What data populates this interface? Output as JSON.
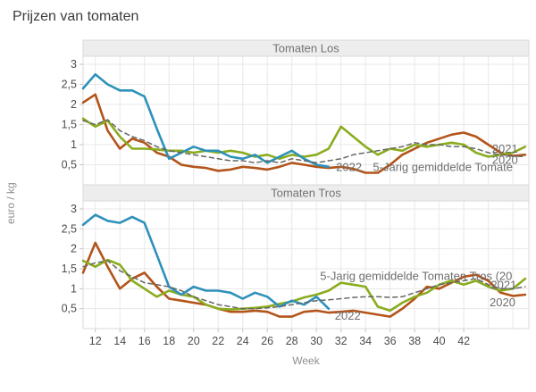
{
  "page": {
    "title": "Prijzen van tomaten",
    "background": "#ffffff"
  },
  "axes": {
    "xlabel": "Week",
    "ylabel": "euro / kg",
    "x_ticks": [
      12,
      14,
      16,
      18,
      20,
      22,
      24,
      26,
      28,
      30,
      32,
      34,
      36,
      38,
      40,
      42
    ],
    "y_ticks": [
      {
        "value": 0.5,
        "label": "0,5"
      },
      {
        "value": 1,
        "label": "1"
      },
      {
        "value": 1.5,
        "label": "1,5"
      },
      {
        "value": 2,
        "label": "2"
      },
      {
        "value": 2.5,
        "label": "2,5"
      },
      {
        "value": 3,
        "label": "3"
      }
    ],
    "ylim": [
      0,
      3.2
    ],
    "xlim": [
      11,
      47.3
    ],
    "grid": true
  },
  "colors": {
    "series_2022": "#2e91ba",
    "series_2021": "#8aac1e",
    "series_2020": "#b3541a",
    "series_avg": "#666666",
    "panel_strip": "#ededed",
    "grid_line": "#e8e8e8",
    "border": "#d9d9d9"
  },
  "chart_data": [
    {
      "type": "line",
      "panel_title": "Tomaten Los",
      "weeks": [
        11,
        12,
        13,
        14,
        15,
        16,
        17,
        18,
        19,
        20,
        21,
        22,
        23,
        24,
        25,
        26,
        27,
        28,
        29,
        30,
        31,
        32,
        33,
        34,
        35,
        36,
        37,
        38,
        39,
        40,
        41,
        42,
        43,
        44,
        45,
        46,
        47
      ],
      "series": [
        {
          "id": "2020",
          "name": "2020",
          "color": "#b3541a",
          "dash": false,
          "start_week": 11,
          "values": [
            2.05,
            2.25,
            1.35,
            0.9,
            1.15,
            1.05,
            0.8,
            0.7,
            0.5,
            0.45,
            0.42,
            0.35,
            0.38,
            0.45,
            0.42,
            0.38,
            0.45,
            0.55,
            0.5,
            0.45,
            0.42,
            0.45,
            0.4,
            0.3,
            0.3,
            0.5,
            0.75,
            0.9,
            1.05,
            1.15,
            1.25,
            1.3,
            1.2,
            1.0,
            0.8,
            0.72,
            0.75
          ]
        },
        {
          "id": "2021",
          "name": "2021",
          "color": "#8aac1e",
          "dash": false,
          "start_week": 11,
          "values": [
            1.65,
            1.45,
            1.6,
            1.2,
            0.9,
            0.9,
            0.88,
            0.85,
            0.85,
            0.8,
            0.85,
            0.8,
            0.85,
            0.8,
            0.7,
            0.75,
            0.65,
            0.75,
            0.7,
            0.75,
            0.9,
            1.45,
            1.2,
            0.95,
            0.75,
            0.9,
            0.85,
            1.0,
            0.95,
            1.0,
            1.05,
            1.0,
            0.8,
            0.7,
            0.75,
            0.8,
            0.95
          ]
        },
        {
          "id": "2022",
          "name": "2022",
          "color": "#2e91ba",
          "dash": false,
          "start_week": 11,
          "values": [
            2.4,
            2.75,
            2.5,
            2.35,
            2.35,
            2.2,
            1.4,
            0.65,
            0.8,
            0.95,
            0.85,
            0.85,
            0.7,
            0.65,
            0.75,
            0.55,
            0.7,
            0.85,
            0.65,
            0.5,
            0.45
          ]
        },
        {
          "id": "avg5",
          "name": "5-Jarig gemiddelde Tomate",
          "color": "#666666",
          "dash": true,
          "start_week": 11,
          "values": [
            1.6,
            1.5,
            1.62,
            1.35,
            1.2,
            1.1,
            0.95,
            0.85,
            0.8,
            0.75,
            0.7,
            0.65,
            0.6,
            0.6,
            0.55,
            0.6,
            0.55,
            0.65,
            0.6,
            0.55,
            0.6,
            0.65,
            0.75,
            0.8,
            0.85,
            0.9,
            0.95,
            1.05,
            1.0,
            1.0,
            0.95,
            0.95,
            0.9,
            0.8,
            0.75,
            0.72,
            0.7
          ]
        }
      ],
      "inline_labels": [
        {
          "text": "2022",
          "week": 31.6,
          "value": 0.44
        },
        {
          "text": "5-Jarig gemiddelde Tomate",
          "week": 34.6,
          "value": 0.44
        },
        {
          "text": "2021",
          "week": 44.3,
          "value": 0.9
        },
        {
          "text": "2020",
          "week": 44.3,
          "value": 0.62
        }
      ]
    },
    {
      "type": "line",
      "panel_title": "Tomaten Tros",
      "weeks": [
        11,
        12,
        13,
        14,
        15,
        16,
        17,
        18,
        19,
        20,
        21,
        22,
        23,
        24,
        25,
        26,
        27,
        28,
        29,
        30,
        31,
        32,
        33,
        34,
        35,
        36,
        37,
        38,
        39,
        40,
        41,
        42,
        43,
        44,
        45,
        46,
        47
      ],
      "series": [
        {
          "id": "2020",
          "name": "2020",
          "color": "#b3541a",
          "dash": false,
          "start_week": 11,
          "values": [
            1.4,
            2.15,
            1.55,
            1.0,
            1.25,
            1.4,
            1.05,
            0.75,
            0.7,
            0.65,
            0.6,
            0.5,
            0.42,
            0.42,
            0.45,
            0.42,
            0.3,
            0.3,
            0.42,
            0.45,
            0.4,
            0.42,
            0.45,
            0.4,
            0.35,
            0.3,
            0.5,
            0.75,
            1.05,
            1.0,
            1.15,
            1.3,
            1.35,
            1.2,
            0.9,
            0.82,
            0.85
          ]
        },
        {
          "id": "2021",
          "name": "2021",
          "color": "#8aac1e",
          "dash": false,
          "start_week": 11,
          "values": [
            1.7,
            1.55,
            1.72,
            1.6,
            1.2,
            1.0,
            0.8,
            0.95,
            0.85,
            0.8,
            0.6,
            0.5,
            0.48,
            0.5,
            0.52,
            0.55,
            0.62,
            0.68,
            0.78,
            0.85,
            0.95,
            1.15,
            1.1,
            1.05,
            0.55,
            0.45,
            0.65,
            0.8,
            0.9,
            1.1,
            1.2,
            1.1,
            1.2,
            1.05,
            0.95,
            1.0,
            1.25
          ]
        },
        {
          "id": "2022",
          "name": "2022",
          "color": "#2e91ba",
          "dash": false,
          "start_week": 11,
          "values": [
            2.6,
            2.85,
            2.7,
            2.65,
            2.8,
            2.65,
            1.85,
            1.05,
            0.85,
            1.05,
            0.95,
            0.95,
            0.9,
            0.75,
            0.9,
            0.8,
            0.55,
            0.7,
            0.6,
            0.8,
            0.5
          ]
        },
        {
          "id": "avg5",
          "name": "5-Jarig gemiddelde Tomaten Tros (20",
          "color": "#666666",
          "dash": true,
          "start_week": 11,
          "values": [
            1.55,
            1.65,
            1.7,
            1.45,
            1.3,
            1.15,
            1.1,
            1.05,
            0.95,
            0.8,
            0.7,
            0.6,
            0.55,
            0.5,
            0.5,
            0.52,
            0.55,
            0.6,
            0.65,
            0.7,
            0.72,
            0.75,
            0.78,
            0.8,
            0.8,
            0.78,
            0.8,
            0.9,
            1.0,
            1.1,
            1.15,
            1.2,
            1.25,
            1.1,
            1.0,
            1.0,
            1.05
          ]
        }
      ],
      "inline_labels": [
        {
          "text": "2022",
          "week": 31.5,
          "value": 0.33
        },
        {
          "text": "5-Jarig gemiddelde Tomaten Tros (20",
          "week": 30.3,
          "value": 1.32
        },
        {
          "text": "2021",
          "week": 44.2,
          "value": 1.1
        },
        {
          "text": "2020",
          "week": 44.1,
          "value": 0.66
        }
      ]
    }
  ]
}
